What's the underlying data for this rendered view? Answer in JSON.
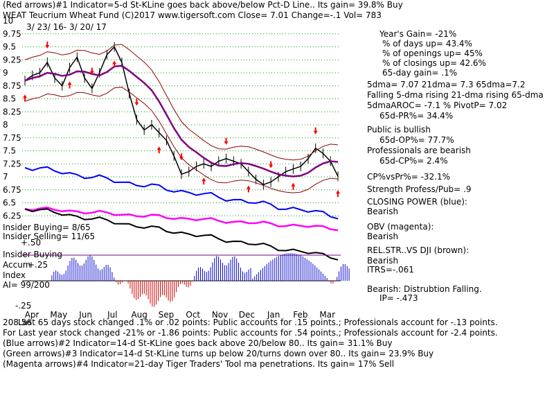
{
  "header": {
    "line1": "(Red arrows)#1 Indicator=5-d St-KLine goes back above/below Pct-D Line.. Its gain= 39.8% Buy",
    "line2": "WEAT  Teucrium Wheat Fund  (C)2017 www.tigersoft.com     Close=  7.01  Change=-.1 Vol= 783",
    "date_range": "3/ 23/ 16-  3/ 20/ 17",
    "page_marker": "10"
  },
  "chart_data": {
    "type": "line",
    "title": "WEAT  Teucrium Wheat Fund",
    "x_months": [
      "Apr",
      "May",
      "Jun",
      "Jul",
      "Aug",
      "Sep",
      "Oct",
      "Nov",
      "Dec",
      "Jan",
      "Feb",
      "Mar"
    ],
    "y_ticks": [
      "9.75",
      "9.5",
      "9.25",
      "9",
      "8.75",
      "8.5",
      "8.25",
      "8",
      "7.75",
      "7.5",
      "7.25",
      "7",
      "6.75",
      "6.5",
      "6.25"
    ],
    "ylim": [
      6.0,
      10.0
    ],
    "price_close_series": [
      {
        "name": "close",
        "values": [
          8.85,
          8.95,
          9.0,
          9.2,
          8.9,
          8.75,
          9.1,
          9.3,
          8.9,
          8.7,
          9.0,
          9.35,
          9.5,
          9.2,
          8.6,
          8.1,
          7.9,
          8.0,
          7.85,
          7.7,
          7.4,
          7.05,
          7.1,
          7.2,
          7.25,
          7.2,
          7.3,
          7.35,
          7.3,
          7.25,
          7.1,
          6.95,
          6.85,
          6.9,
          7.0,
          7.1,
          7.15,
          7.2,
          7.35,
          7.55,
          7.45,
          7.3,
          7.01
        ]
      }
    ],
    "indicators": {
      "buy_sell_arrows": {
        "red": "5-d St-KLine vs Pct-D",
        "blue": "14-d St-KLine 20/80",
        "green": "14-d St-KLine 20/80 turns",
        "magenta": "21-day Tiger Traders' Tool ma"
      }
    }
  },
  "insider": {
    "buying": "Insider Buying= 8/65",
    "selling": "Insider Selling= 11/65",
    "accum_title": "Insider Buying",
    "accum_label1": "Accum",
    "accum_label2": "Index",
    "ai_value": "AI= 99/200",
    "level_plus50": "+.50",
    "level_plus25": "+.25",
    "level_minus25": "-.25"
  },
  "stats": {
    "years_gain": "Year's Gain= -21%",
    "days_up": "% of days up= 43.4%",
    "openings_up": "% of openings up= 45%",
    "closings_up": "% of closings up= 42.6%",
    "gain_65d": "65-day gain= .1%",
    "dma": "5dma= 7.07 21dma= 7.3 65dma=7.2",
    "dma_trend": "Falling 5-dma rising 21-dma rising 65-dma",
    "aroc": "5dmaAROC= -7.1  %  PivotP= 7.02",
    "pr65": "65d-PR%= 34.4%",
    "public": "Public is bullish",
    "op65": "65d-OP%= 77.7%",
    "professionals": "Professionals are bearish",
    "cp65": "65d-CP%= 2.4%",
    "cpvspr": "CP%vsPr%= -32.1%",
    "strength": "Strength Profess/Pub= .9",
    "closing_power_title": "CLOSING POWER (blue):",
    "closing_power_value": "Bearish",
    "obv_title": "OBV (magenta):",
    "obv_value": "Bearish",
    "relstr_title": "REL.STR..VS DJI (brown):",
    "relstr_value": "Bearish",
    "itrs": "ITRS=-.061",
    "distribution": "Bearish: Distrubtion Falling.",
    "ip": "IP= -.473"
  },
  "footer": {
    "line1_prefix": "208.56",
    "line1": "Last 65 days stock changed  .1% or  .02 points:  Public accounts for  .15 points.;  Professionals account for -.13 points.",
    "line2": "For Last year stock changed -21% or -1.86 points:  Public accounts for  .54 points.;  Professionals account for -2.4 points.",
    "line3": "(Blue arrows)#2 Indicator=14-d St-KLine goes back above 20/below 80.. Its gain= 31.1% Buy",
    "line4": "(Green arrows)#3 Indicator=14-d St-KLine turns up below 20/turns down over 80.. Its gain= 23.9% Buy",
    "line5": "(Magenta arrows)#4 Indicator=21-day Tiger Traders' Tool ma penetrations. Its gain= 17% Sell"
  },
  "colors": {
    "price": "#000000",
    "ma65": "#800080",
    "bands": "#8b0000",
    "ma21": "#ff0000",
    "closing_power": "#0000ff",
    "obv": "#ff00ff",
    "relstr": "#000000",
    "accum_pos": "#0000cc",
    "accum_neg": "#cc0000",
    "grid": "#00a000",
    "arrow": "#ff0000"
  }
}
